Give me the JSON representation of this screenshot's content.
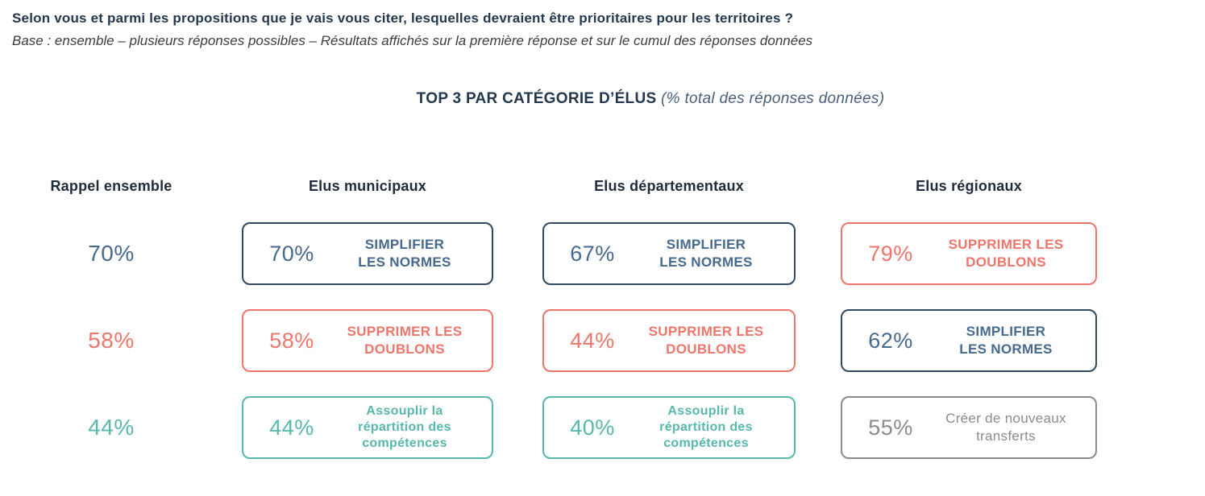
{
  "header": {
    "title": "Selon vous et parmi les propositions que je vais vous citer, lesquelles devraient être prioritaires pour les territoires ?",
    "subtitle": "Base : ensemble – plusieurs réponses possibles – Résultats affichés sur la première réponse et sur le cumul des réponses données"
  },
  "section": {
    "title": "TOP 3 PAR CATÉGORIE D’ÉLUS",
    "subtitle": "(% total des réponses données)"
  },
  "colors": {
    "navy": "#47698e",
    "navy_dark": "#334a5e",
    "coral": "#f0766b",
    "teal": "#57b8ab",
    "gray": "#8a8c8f",
    "title": "#24374c"
  },
  "chart_data": {
    "type": "table",
    "title": "TOP 3 PAR CATÉGORIE D’ÉLUS",
    "subtitle": "(% total des réponses données)",
    "unit": "% total des réponses données",
    "groups": [
      {
        "header": "Rappel ensemble",
        "items": [
          {
            "value": "70%",
            "number": 70,
            "color": "navy"
          },
          {
            "value": "58%",
            "number": 58,
            "color": "coral"
          },
          {
            "value": "44%",
            "number": 44,
            "color": "teal"
          }
        ]
      },
      {
        "header": "Elus municipaux",
        "items": [
          {
            "value": "70%",
            "number": 70,
            "label": "SIMPLIFIER\nLES NORMES",
            "color": "navy",
            "border": "navy_dark"
          },
          {
            "value": "58%",
            "number": 58,
            "label": "SUPPRIMER LES\nDOUBLONS",
            "color": "coral"
          },
          {
            "value": "44%",
            "number": 44,
            "label": "Assouplir la\nrépartition des\ncompétences",
            "color": "teal"
          }
        ]
      },
      {
        "header": "Elus départementaux",
        "items": [
          {
            "value": "67%",
            "number": 67,
            "label": "SIMPLIFIER\nLES NORMES",
            "color": "navy",
            "border": "navy_dark"
          },
          {
            "value": "44%",
            "number": 44,
            "label": "SUPPRIMER LES\nDOUBLONS",
            "color": "coral"
          },
          {
            "value": "40%",
            "number": 40,
            "label": "Assouplir la\nrépartition des\ncompétences",
            "color": "teal"
          }
        ]
      },
      {
        "header": "Elus régionaux",
        "items": [
          {
            "value": "79%",
            "number": 79,
            "label": "SUPPRIMER LES\nDOUBLONS",
            "color": "coral"
          },
          {
            "value": "62%",
            "number": 62,
            "label": "SIMPLIFIER\nLES NORMES",
            "color": "navy",
            "border": "navy_dark"
          },
          {
            "value": "55%",
            "number": 55,
            "label": "Créer de nouveaux\ntransferts",
            "color": "gray"
          }
        ]
      }
    ]
  }
}
